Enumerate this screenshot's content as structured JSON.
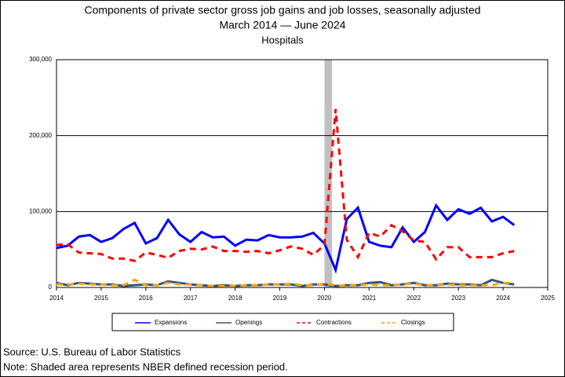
{
  "chart_data": {
    "type": "line",
    "title": "Components of private sector gross job gains and job losses, seasonally adjusted",
    "subtitle": "March 2014 — June 2024",
    "subtitle2": "Hospitals",
    "source": "Source: U.S. Bureau of Labor Statistics",
    "note": "Note: Shaded area represents NBER defined recession period.",
    "x": [
      2014,
      2014.25,
      2014.5,
      2014.75,
      2015,
      2015.25,
      2015.5,
      2015.75,
      2016,
      2016.25,
      2016.5,
      2016.75,
      2017,
      2017.25,
      2017.5,
      2017.75,
      2018,
      2018.25,
      2018.5,
      2018.75,
      2019,
      2019.25,
      2019.5,
      2019.75,
      2020,
      2020.25,
      2020.5,
      2020.75,
      2021,
      2021.25,
      2021.5,
      2021.75,
      2022,
      2022.25,
      2022.5,
      2022.75,
      2023,
      2023.25,
      2023.5,
      2023.75,
      2024,
      2024.25
    ],
    "recession": [
      2020,
      2020.17
    ],
    "series": [
      {
        "name": "Expansions",
        "color": "#0000ff",
        "dashed": false,
        "values": [
          52000,
          55000,
          67000,
          69000,
          60000,
          65000,
          77000,
          85000,
          58000,
          65000,
          89000,
          70000,
          60000,
          73000,
          66000,
          67000,
          55000,
          63000,
          62000,
          69000,
          66000,
          66000,
          67000,
          72000,
          58000,
          23000,
          90000,
          105000,
          60000,
          55000,
          53000,
          79000,
          60000,
          73000,
          108000,
          89000,
          103000,
          97000,
          105000,
          87000,
          93000,
          82000
        ]
      },
      {
        "name": "Openings",
        "color": "#34557f",
        "dashed": false,
        "values": [
          6000,
          3000,
          6000,
          5000,
          4000,
          4000,
          2000,
          3000,
          4000,
          3000,
          8000,
          6000,
          4000,
          3000,
          2000,
          3000,
          2000,
          3000,
          3000,
          4000,
          4000,
          4000,
          2000,
          4000,
          4000,
          2000,
          3000,
          3000,
          6000,
          7000,
          3000,
          4000,
          6000,
          3000,
          3000,
          5000,
          4000,
          4000,
          3000,
          10000,
          6000,
          4000
        ]
      },
      {
        "name": "Contractions",
        "color": "#ff0000",
        "dashed": true,
        "values": [
          56000,
          57000,
          46000,
          45000,
          44000,
          38000,
          38000,
          35000,
          46000,
          43000,
          39000,
          48000,
          51000,
          50000,
          54000,
          48000,
          48000,
          47000,
          48000,
          45000,
          49000,
          54000,
          51000,
          43000,
          56000,
          235000,
          63000,
          40000,
          72000,
          67000,
          82000,
          74000,
          62000,
          60000,
          37000,
          53000,
          53000,
          40000,
          40000,
          40000,
          45000,
          48000
        ]
      },
      {
        "name": "Closings",
        "color": "#ffa500",
        "dashed": true,
        "values": [
          4000,
          4000,
          5000,
          4000,
          4000,
          3000,
          3000,
          10000,
          3000,
          3000,
          6000,
          4000,
          4000,
          3000,
          2000,
          2000,
          2000,
          3000,
          3000,
          4000,
          4000,
          5000,
          3000,
          3000,
          5000,
          3000,
          2000,
          3000,
          4000,
          3000,
          3000,
          4000,
          5000,
          3000,
          3000,
          4000,
          3000,
          3000,
          3000,
          3000,
          6000,
          6000
        ]
      }
    ],
    "xlim": [
      2014,
      2025
    ],
    "xticks": [
      2014,
      2015,
      2016,
      2017,
      2018,
      2019,
      2020,
      2021,
      2022,
      2023,
      2024,
      2025
    ],
    "ylim": [
      0,
      300000
    ],
    "yticks": [
      {
        "value": 0,
        "label": "0"
      },
      {
        "value": 100000,
        "label": "100,000"
      },
      {
        "value": 200000,
        "label": "200,000"
      },
      {
        "value": 300000,
        "label": "300,000"
      }
    ],
    "grid": true
  }
}
